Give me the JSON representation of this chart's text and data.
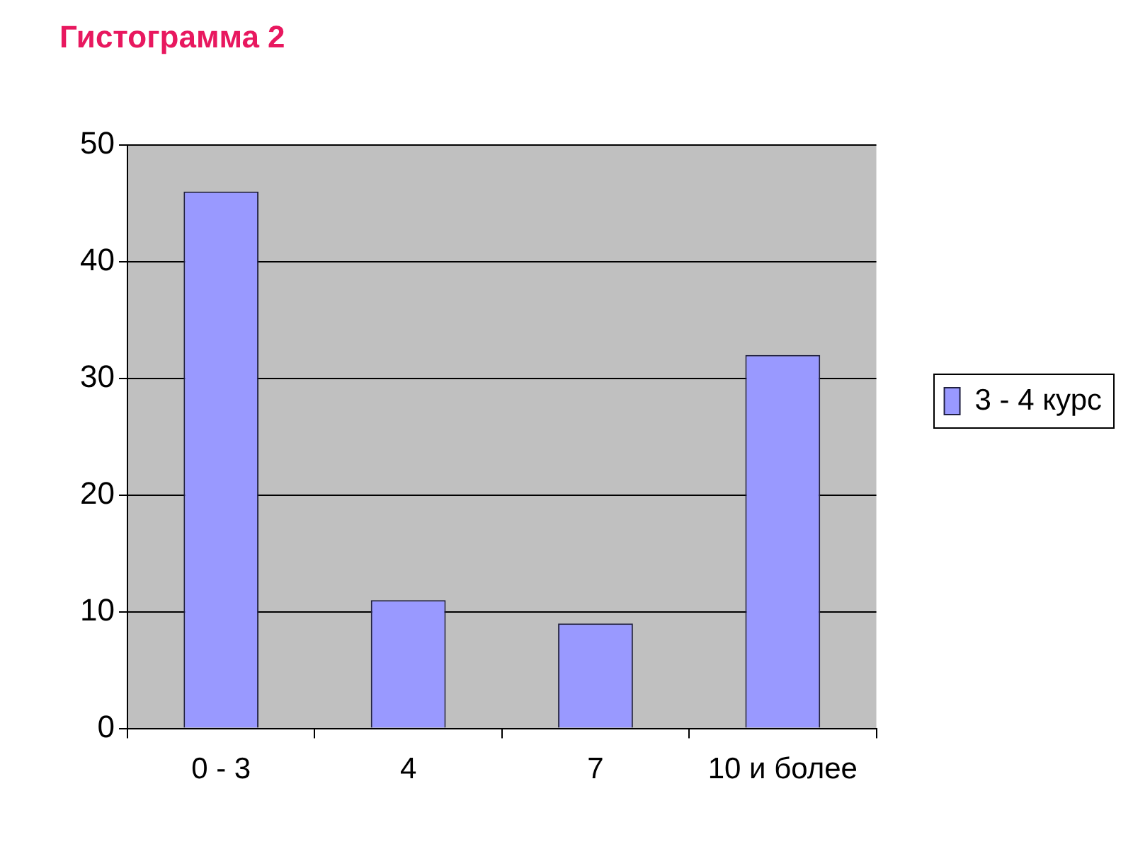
{
  "chart_data": {
    "type": "bar",
    "title": "Гистограмма 2",
    "categories": [
      "0 - 3",
      "4",
      "7",
      "10 и более"
    ],
    "series": [
      {
        "name": "3 - 4 курс",
        "color": "#9999ff",
        "values": [
          46,
          11,
          9,
          32
        ]
      }
    ],
    "ylim": [
      0,
      50
    ],
    "yticks": [
      0,
      10,
      20,
      30,
      40,
      50
    ],
    "grid": "y",
    "legend": "right"
  }
}
